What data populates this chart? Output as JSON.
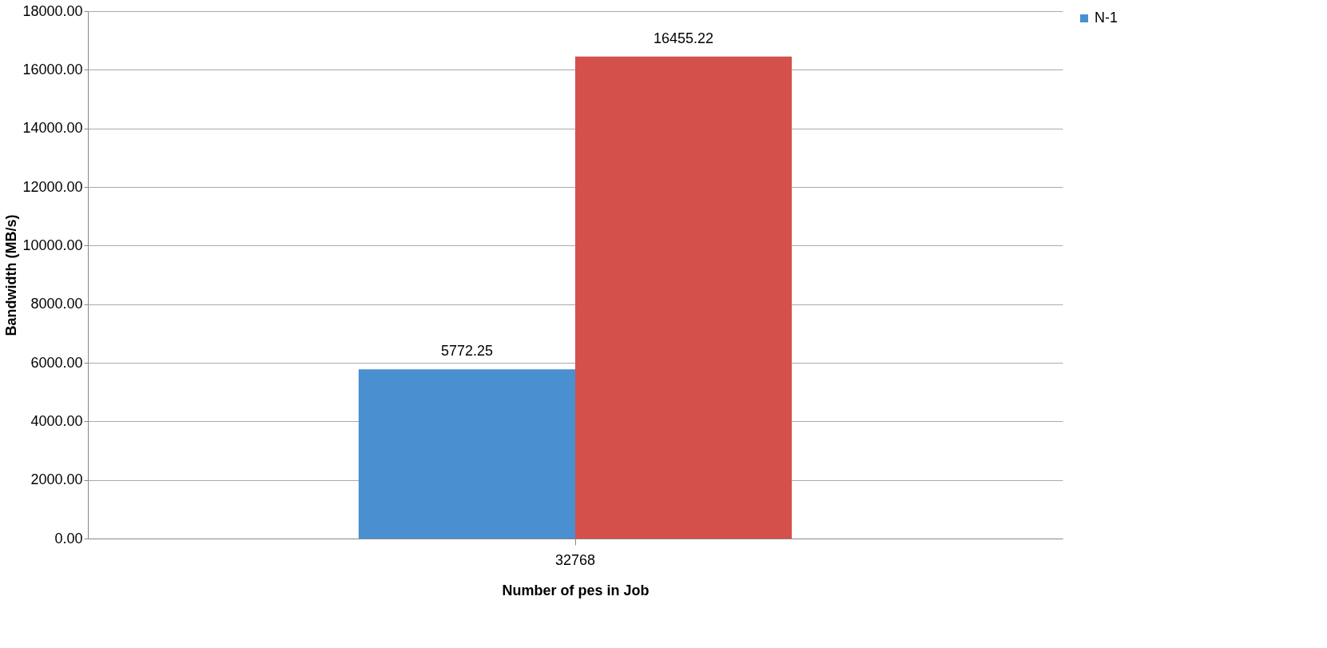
{
  "chart_data": {
    "type": "bar",
    "xlabel": "Number of pes in Job",
    "ylabel": "Bandwidth (MB/s)",
    "categories": [
      "32768"
    ],
    "series": [
      {
        "name": "N-1",
        "color": "#4a8fd0",
        "values": [
          5772.25
        ]
      },
      {
        "color": "#d4504a",
        "values": [
          16455.22
        ]
      }
    ],
    "ylim": [
      0,
      18000
    ],
    "yticks": [
      {
        "value": 0,
        "label": "0.00"
      },
      {
        "value": 2000,
        "label": "2000.00"
      },
      {
        "value": 4000,
        "label": "4000.00"
      },
      {
        "value": 6000,
        "label": "6000.00"
      },
      {
        "value": 8000,
        "label": "8000.00"
      },
      {
        "value": 10000,
        "label": "10000.00"
      },
      {
        "value": 12000,
        "label": "12000.00"
      },
      {
        "value": 14000,
        "label": "14000.00"
      },
      {
        "value": 16000,
        "label": "16000.00"
      },
      {
        "value": 18000,
        "label": "18000.00"
      }
    ],
    "grid": "y",
    "legend": "right",
    "data_labels": true
  }
}
